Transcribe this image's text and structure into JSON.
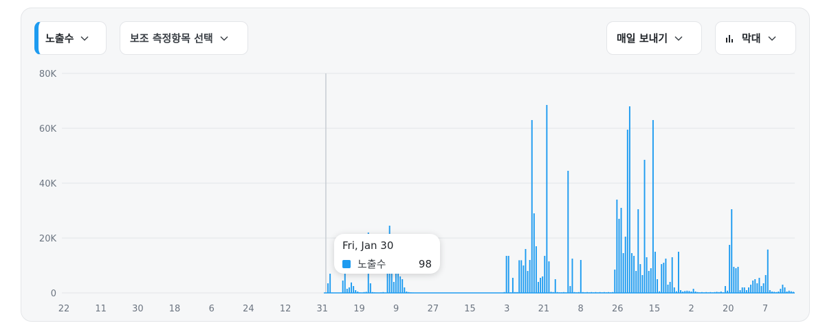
{
  "controls": {
    "metric_label": "노출수",
    "secondary_label": "보조 측정항목 선택",
    "export_label": "매일 보내기",
    "chart_type_label": "막대"
  },
  "colors": {
    "bar": "#1d9bf0",
    "grid": "#e2e5e8",
    "axis_text": "#6b7480",
    "hover_line": "#c7ccd2"
  },
  "tooltip": {
    "date": "Fri, Jan 30",
    "series": "노출수",
    "value": "98"
  },
  "chart_data": {
    "type": "bar",
    "title": "",
    "xlabel": "",
    "ylabel": "",
    "ylim": [
      0,
      80000
    ],
    "grid": true,
    "y_ticks": [
      "0",
      "20K",
      "40K",
      "60K",
      "80K"
    ],
    "x_tick_labels": [
      "22",
      "11",
      "30",
      "18",
      "6",
      "24",
      "12",
      "31",
      "19",
      "9",
      "27",
      "15",
      "3",
      "21",
      "8",
      "26",
      "15",
      "2",
      "20",
      "7"
    ],
    "hover_index": 0,
    "series": [
      {
        "name": "노출수",
        "values": [
          98,
          3500,
          7000,
          150,
          120,
          80,
          100,
          60,
          4500,
          7000,
          1500,
          2000,
          3800,
          2500,
          1000,
          500,
          200,
          150,
          300,
          400,
          22000,
          3500,
          300,
          200,
          150,
          100,
          200,
          300,
          150,
          9500,
          24500,
          15000,
          4000,
          10000,
          8000,
          6000,
          5000,
          2000,
          500,
          300,
          200,
          150,
          120,
          110,
          100,
          90,
          80,
          70,
          60,
          80,
          60,
          70,
          60,
          80,
          60,
          50,
          60,
          70,
          60,
          50,
          60,
          70,
          60,
          50,
          60,
          70,
          60,
          50,
          60,
          70,
          60,
          50,
          60,
          70,
          60,
          50,
          60,
          70,
          60,
          50,
          60,
          70,
          60,
          50,
          300,
          13500,
          13500,
          200,
          5500,
          300,
          300,
          11900,
          11900,
          10000,
          16000,
          8000,
          12000,
          63000,
          29000,
          17000,
          4000,
          5500,
          6000,
          13500,
          68500,
          11500,
          400,
          300,
          5000,
          300,
          200,
          200,
          300,
          200,
          44500,
          2500,
          12500,
          300,
          200,
          300,
          12000,
          300,
          200,
          300,
          200,
          300,
          200,
          300,
          200,
          300,
          200,
          300,
          200,
          300,
          200,
          300,
          8500,
          34000,
          27000,
          31000,
          14500,
          20500,
          59500,
          68000,
          14500,
          13500,
          8000,
          30500,
          10500,
          6500,
          48500,
          13000,
          8000,
          9000,
          63000,
          15000,
          5000,
          600,
          10500,
          11000,
          12500,
          3000,
          4000,
          13000,
          2000,
          600,
          15000,
          1000,
          500,
          700,
          800,
          700,
          500,
          1500,
          500,
          300,
          200,
          300,
          200,
          300,
          200,
          300,
          200,
          300,
          400,
          300,
          500,
          200,
          2500,
          800,
          17500,
          30500,
          9500,
          9000,
          9500,
          1000,
          2000,
          2000,
          1000,
          2000,
          3000,
          4500,
          5000,
          3500,
          5500,
          2500,
          3500,
          6500,
          15800,
          1000,
          500,
          400,
          300,
          500,
          1500,
          3000,
          2000,
          500,
          800,
          600,
          400
        ]
      }
    ]
  }
}
